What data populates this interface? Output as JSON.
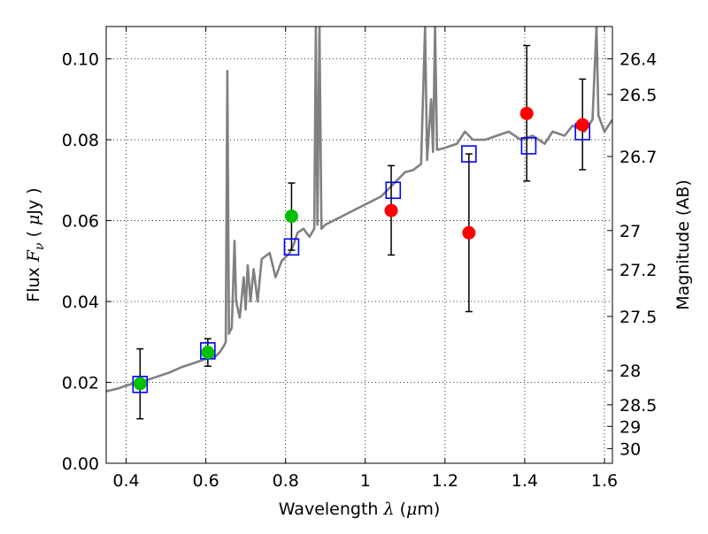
{
  "chart_data": {
    "type": "scatter",
    "xlabel": "Wavelength  λ (μm)",
    "xlabel_parts": {
      "text": "Wavelength  ",
      "sym": "λ",
      "unit_open": " (",
      "mu": "μ",
      "unit_close": "m)"
    },
    "ylabel": "Flux  Fν  ( μJy )",
    "ylabel_parts": {
      "text": "Flux  ",
      "sym": "F",
      "sub": "ν",
      "unit_open": "  ( ",
      "mu": "μ",
      "unit_close": "Jy )"
    },
    "y2label": "Magnitude (AB)",
    "xlim": [
      0.35,
      1.62
    ],
    "ylim": [
      0.0,
      0.108
    ],
    "grid": true,
    "x_ticks": [
      {
        "v": 0.4,
        "label": "0.4"
      },
      {
        "v": 0.6,
        "label": "0.6"
      },
      {
        "v": 0.8,
        "label": "0.8"
      },
      {
        "v": 1.0,
        "label": "1"
      },
      {
        "v": 1.2,
        "label": "1.2"
      },
      {
        "v": 1.4,
        "label": "1.4"
      },
      {
        "v": 1.6,
        "label": "1.6"
      }
    ],
    "y_ticks": [
      {
        "v": 0.0,
        "label": "0.00"
      },
      {
        "v": 0.02,
        "label": "0.02"
      },
      {
        "v": 0.04,
        "label": "0.04"
      },
      {
        "v": 0.06,
        "label": "0.06"
      },
      {
        "v": 0.08,
        "label": "0.08"
      },
      {
        "v": 0.1,
        "label": "0.10"
      }
    ],
    "y2_ticks": [
      {
        "mag": 26.4,
        "label": "26.4"
      },
      {
        "mag": 26.5,
        "label": "26.5"
      },
      {
        "mag": 26.7,
        "label": "26.7"
      },
      {
        "mag": 27,
        "label": "27"
      },
      {
        "mag": 27.2,
        "label": "27.2"
      },
      {
        "mag": 27.5,
        "label": "27.5"
      },
      {
        "mag": 28,
        "label": "28"
      },
      {
        "mag": 28.5,
        "label": "28.5"
      },
      {
        "mag": 29,
        "label": "29"
      },
      {
        "mag": 30,
        "label": "30"
      }
    ],
    "series": [
      {
        "kind": "line",
        "color": "#808080",
        "points": [
          [
            0.35,
            0.0178
          ],
          [
            0.38,
            0.0185
          ],
          [
            0.4,
            0.0192
          ],
          [
            0.42,
            0.0198
          ],
          [
            0.45,
            0.0205
          ],
          [
            0.48,
            0.0215
          ],
          [
            0.51,
            0.0225
          ],
          [
            0.54,
            0.0238
          ],
          [
            0.57,
            0.0248
          ],
          [
            0.6,
            0.0258
          ],
          [
            0.625,
            0.0265
          ],
          [
            0.635,
            0.0275
          ],
          [
            0.645,
            0.029
          ],
          [
            0.65,
            0.03
          ],
          [
            0.654,
            0.097
          ],
          [
            0.658,
            0.032
          ],
          [
            0.66,
            0.0325
          ],
          [
            0.665,
            0.0335
          ],
          [
            0.672,
            0.055
          ],
          [
            0.676,
            0.04
          ],
          [
            0.685,
            0.036
          ],
          [
            0.695,
            0.046
          ],
          [
            0.7,
            0.038
          ],
          [
            0.705,
            0.049
          ],
          [
            0.712,
            0.04
          ],
          [
            0.72,
            0.048
          ],
          [
            0.73,
            0.04
          ],
          [
            0.74,
            0.0505
          ],
          [
            0.76,
            0.052
          ],
          [
            0.775,
            0.046
          ],
          [
            0.79,
            0.05
          ],
          [
            0.81,
            0.052
          ],
          [
            0.82,
            0.054
          ],
          [
            0.83,
            0.057
          ],
          [
            0.845,
            0.058
          ],
          [
            0.86,
            0.056
          ],
          [
            0.872,
            0.058
          ],
          [
            0.876,
            0.108
          ],
          [
            0.88,
            0.059
          ],
          [
            0.885,
            0.108
          ],
          [
            0.89,
            0.058
          ],
          [
            0.9,
            0.059
          ],
          [
            0.93,
            0.0605
          ],
          [
            0.96,
            0.062
          ],
          [
            0.99,
            0.0635
          ],
          [
            1.02,
            0.065
          ],
          [
            1.04,
            0.066
          ],
          [
            1.06,
            0.068
          ],
          [
            1.08,
            0.07
          ],
          [
            1.1,
            0.072
          ],
          [
            1.12,
            0.0725
          ],
          [
            1.14,
            0.074
          ],
          [
            1.15,
            0.108
          ],
          [
            1.155,
            0.075
          ],
          [
            1.165,
            0.09
          ],
          [
            1.17,
            0.077
          ],
          [
            1.175,
            0.108
          ],
          [
            1.18,
            0.0775
          ],
          [
            1.2,
            0.078
          ],
          [
            1.23,
            0.079
          ],
          [
            1.25,
            0.082
          ],
          [
            1.27,
            0.08
          ],
          [
            1.3,
            0.08
          ],
          [
            1.33,
            0.081
          ],
          [
            1.36,
            0.082
          ],
          [
            1.39,
            0.08
          ],
          [
            1.42,
            0.081
          ],
          [
            1.45,
            0.079
          ],
          [
            1.47,
            0.082
          ],
          [
            1.5,
            0.081
          ],
          [
            1.52,
            0.0835
          ],
          [
            1.55,
            0.082
          ],
          [
            1.57,
            0.085
          ],
          [
            1.58,
            0.108
          ],
          [
            1.585,
            0.086
          ],
          [
            1.6,
            0.082
          ],
          [
            1.62,
            0.085
          ]
        ]
      },
      {
        "kind": "model_points",
        "marker": "open-square",
        "color": "#0000ff",
        "points": [
          [
            0.435,
            0.0195
          ],
          [
            0.605,
            0.0278
          ],
          [
            0.815,
            0.0535
          ],
          [
            1.07,
            0.0675
          ],
          [
            1.26,
            0.0765
          ],
          [
            1.41,
            0.0785
          ],
          [
            1.545,
            0.082
          ]
        ]
      },
      {
        "kind": "observed_points",
        "marker": "filled-circle",
        "points": [
          {
            "x": 0.435,
            "y": 0.0197,
            "err_lo": 0.011,
            "err_hi": 0.0283,
            "color": "#00c000"
          },
          {
            "x": 0.605,
            "y": 0.0274,
            "err_lo": 0.024,
            "err_hi": 0.0308,
            "color": "#00c000"
          },
          {
            "x": 0.815,
            "y": 0.0611,
            "err_lo": 0.0527,
            "err_hi": 0.0693,
            "color": "#00c000"
          },
          {
            "x": 1.065,
            "y": 0.0625,
            "err_lo": 0.0515,
            "err_hi": 0.0736,
            "color": "#ff0000"
          },
          {
            "x": 1.26,
            "y": 0.057,
            "err_lo": 0.0375,
            "err_hi": 0.0765,
            "color": "#ff0000"
          },
          {
            "x": 1.405,
            "y": 0.0865,
            "err_lo": 0.0698,
            "err_hi": 0.1033,
            "color": "#ff0000"
          },
          {
            "x": 1.545,
            "y": 0.0837,
            "err_lo": 0.0726,
            "err_hi": 0.095,
            "color": "#ff0000"
          }
        ]
      }
    ]
  }
}
